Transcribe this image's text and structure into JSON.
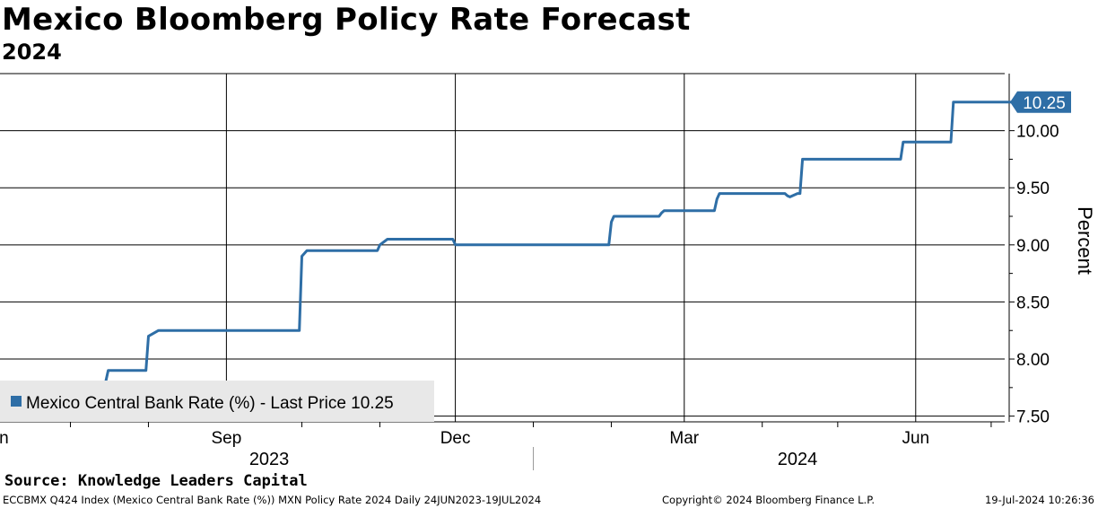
{
  "chart_data": {
    "type": "line",
    "title": "Mexico Bloomberg Policy Rate Forecast",
    "subtitle": "2024",
    "ylabel": "Percent",
    "ylim": [
      7.45,
      10.5
    ],
    "y_ticks": [
      "10.00",
      "9.50",
      "9.00",
      "8.50",
      "8.00",
      "7.50"
    ],
    "x_ticks": [
      "Jun",
      "Sep",
      "Dec",
      "Mar",
      "Jun"
    ],
    "x_years": [
      "2023",
      "2024"
    ],
    "last_price_label": "10.25",
    "legend": "Mexico Central Bank Rate (%) - Last Price 10.25",
    "series": [
      {
        "name": "Mexico Central Bank Rate (%)",
        "color": "#2e6ea6",
        "x": [
          "2023-06-24",
          "2023-07-15",
          "2023-07-16",
          "2023-07-31",
          "2023-08-01",
          "2023-08-05",
          "2023-09-30",
          "2023-10-01",
          "2023-10-03",
          "2023-10-31",
          "2023-11-01",
          "2023-11-04",
          "2023-11-30",
          "2023-12-01",
          "2023-12-05",
          "2024-01-31",
          "2024-02-01",
          "2024-02-02",
          "2024-02-20",
          "2024-02-21",
          "2024-02-22",
          "2024-03-13",
          "2024-03-14",
          "2024-03-15",
          "2024-04-10",
          "2024-04-11",
          "2024-04-12",
          "2024-04-13",
          "2024-04-15",
          "2024-04-16",
          "2024-04-17",
          "2024-05-06",
          "2024-05-07",
          "2024-05-26",
          "2024-05-27",
          "2024-06-15",
          "2024-06-16",
          "2024-07-19"
        ],
        "values": [
          7.8,
          7.8,
          7.9,
          7.9,
          8.2,
          8.25,
          8.25,
          8.9,
          8.95,
          8.95,
          9.0,
          9.05,
          9.05,
          9.0,
          9.0,
          9.0,
          9.2,
          9.25,
          9.25,
          9.28,
          9.3,
          9.3,
          9.4,
          9.45,
          9.45,
          9.43,
          9.42,
          9.43,
          9.45,
          9.45,
          9.75,
          9.75,
          9.75,
          9.75,
          9.9,
          9.9,
          10.25,
          10.25
        ]
      }
    ]
  },
  "source": "Source: Knowledge Leaders Capital",
  "footer": {
    "left": "ECCBMX Q424 Index (Mexico Central Bank Rate (%)) MXN Policy Rate 2024  Daily 24JUN2023-19JUL2024",
    "center": "Copyright© 2024 Bloomberg Finance L.P.",
    "right": "19-Jul-2024 10:26:36"
  },
  "colors": {
    "line": "#2e6ea6",
    "legend_bg": "#e8e8e8"
  }
}
